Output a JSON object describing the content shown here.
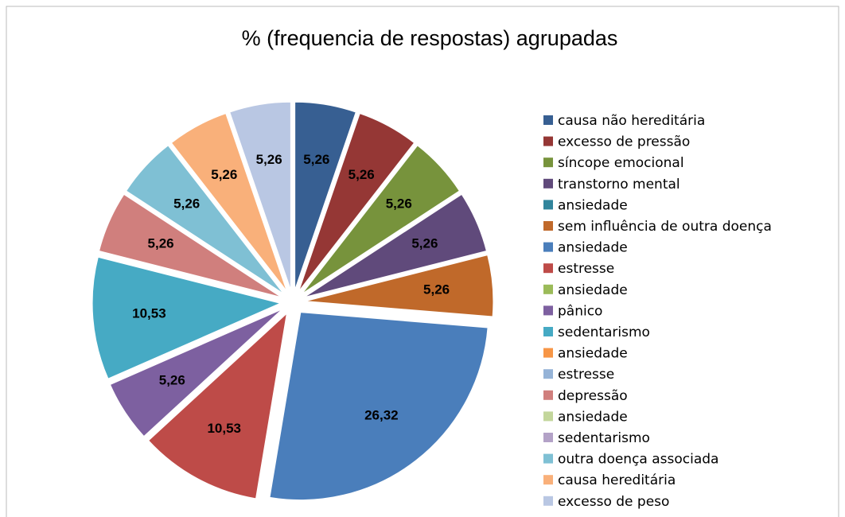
{
  "chart_data": {
    "type": "pie",
    "title": "% (frequencia de respostas) agrupadas",
    "categories": [
      "causa não hereditária",
      "excesso de pressão",
      "síncope emocional",
      "transtorno mental",
      "ansiedade",
      "sem influência de outra doença",
      "ansiedade",
      "estresse",
      "ansiedade",
      "pânico",
      "sedentarismo",
      "ansiedade",
      "estresse",
      "depressão",
      "ansiedade",
      "sedentarismo",
      "outra doença associada",
      "causa hereditária",
      "excesso de peso"
    ],
    "values": [
      5.26,
      5.26,
      5.26,
      5.26,
      0,
      5.26,
      26.32,
      10.53,
      0,
      5.26,
      10.53,
      0,
      0,
      5.26,
      0,
      0,
      5.26,
      5.26,
      5.26
    ],
    "value_labels": [
      "5,26",
      "5,26",
      "5,26",
      "5,26",
      null,
      "5,26",
      "26,32",
      "10,53",
      null,
      "5,26",
      "10,53",
      null,
      null,
      "5,26",
      null,
      null,
      "5,26",
      "5,26",
      "5,26"
    ],
    "colors": [
      "#375f92",
      "#953735",
      "#77933c",
      "#604a7b",
      "#31859c",
      "#c0692a",
      "#4a7ebb",
      "#be4b48",
      "#9bbb59",
      "#7d60a0",
      "#46aac4",
      "#f79646",
      "#95b3d7",
      "#d07f7d",
      "#c3d69b",
      "#b3a2c7",
      "#7fc0d4",
      "#f9b07a",
      "#b9c7e3"
    ],
    "legend": "right"
  }
}
